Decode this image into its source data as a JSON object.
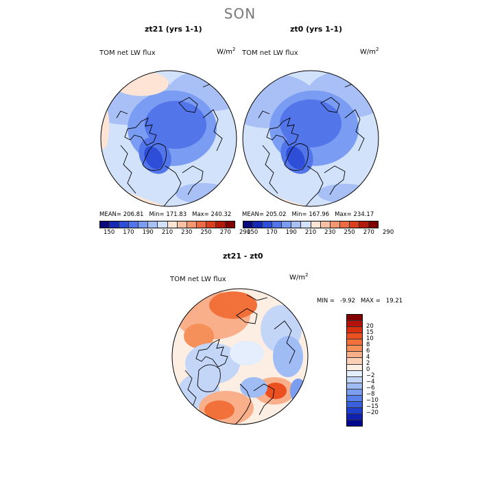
{
  "season": "SON",
  "panels": [
    {
      "title": "zt21 (yrs 1-1)",
      "field_label": "TOM net LW flux",
      "unit_base": "W/m",
      "unit_exp": "2",
      "stats": {
        "mean": "MEAN= 206.81",
        "min": "Min= 171.83",
        "max": "Max= 240.32"
      }
    },
    {
      "title": "zt0 (yrs 1-1)",
      "field_label": "TOM net LW flux",
      "unit_base": "W/m",
      "unit_exp": "2",
      "stats": {
        "mean": "MEAN= 205.02",
        "min": "Min= 167.96",
        "max": "Max= 234.17"
      }
    }
  ],
  "abs_colorbar": {
    "colors": [
      "#0a0a7a",
      "#1428b4",
      "#2e4ed8",
      "#5276ea",
      "#7a9cf2",
      "#a8c0f6",
      "#d2e2fa",
      "#fde4d4",
      "#f9c0a4",
      "#f49670",
      "#ec6a44",
      "#d8401e",
      "#b41a0a",
      "#800000"
    ],
    "tick_labels": [
      "150",
      "170",
      "190",
      "210",
      "230",
      "250",
      "270",
      "290"
    ]
  },
  "diff_panel": {
    "title": "zt21 - zt0",
    "field_label": "TOM net LW flux",
    "unit_base": "W/m",
    "unit_exp": "2",
    "min_label": "MIN =",
    "min_value": "-9.92",
    "max_label": "MAX =",
    "max_value": "19.21"
  },
  "diff_colorbar": {
    "colors": [
      "#800000",
      "#b4120a",
      "#d8300e",
      "#ec5020",
      "#f2703a",
      "#f6905a",
      "#f9b08a",
      "#fcd0b6",
      "#fdeee4",
      "#e4eefc",
      "#c4d6f8",
      "#a0bcf4",
      "#7c9ef0",
      "#5a80ea",
      "#3a60de",
      "#1e40cc",
      "#1020b0",
      "#000890"
    ],
    "tick_labels": [
      "20",
      "15",
      "10",
      "8",
      "6",
      "4",
      "2",
      "0",
      "−2",
      "−4",
      "−6",
      "−8",
      "−10",
      "−15",
      "−20"
    ]
  }
}
